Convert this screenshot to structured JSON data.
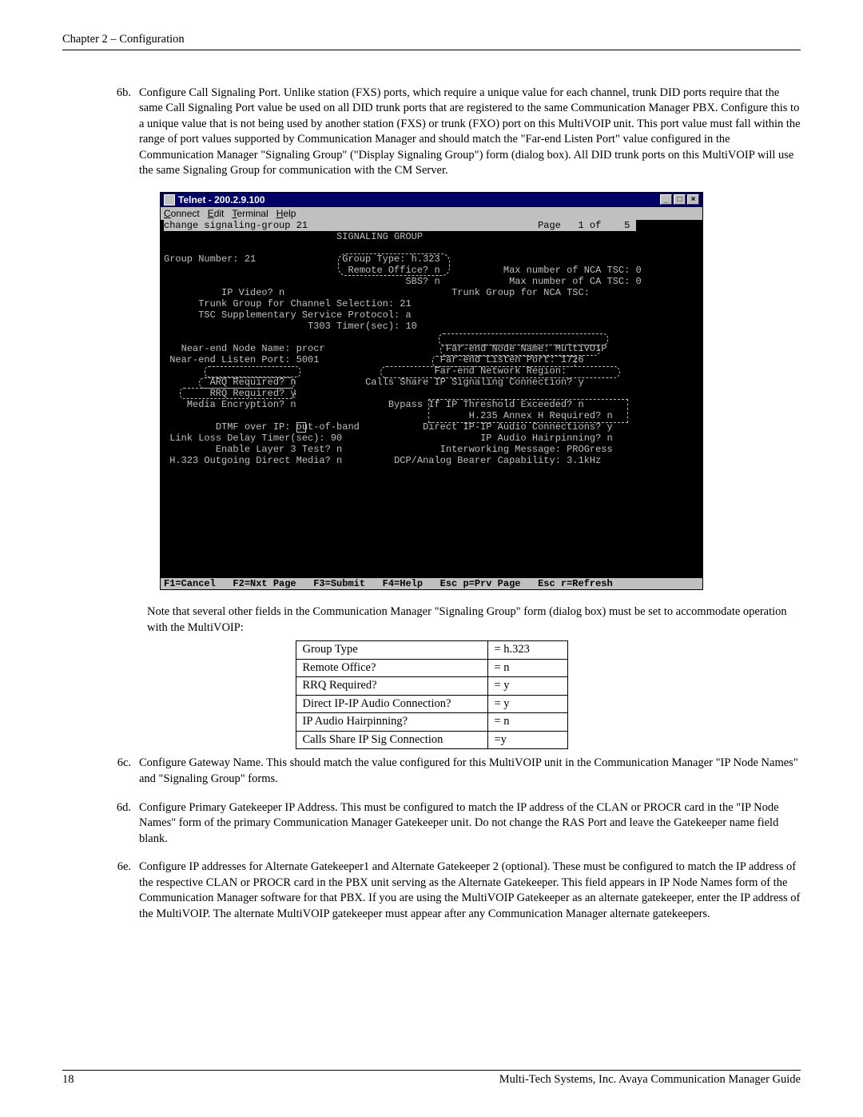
{
  "header": {
    "chapter": "Chapter 2 – Configuration"
  },
  "steps": {
    "b": {
      "num": "6b.",
      "text": "Configure Call Signaling Port.  Unlike station (FXS) ports, which require a unique value for each channel, trunk DID ports require that the same Call Signaling Port value be used on all DID trunk ports that are registered to the same Communication Manager PBX.  Configure this to a unique value that is not being used by another station (FXS) or trunk (FXO) port on this MultiVOIP unit. This port value must fall within the range of port values supported by Communication Manager and should match the  \"Far-end Listen Port\" value configured in the Communication Manager \"Signaling Group\" (\"Display Signaling Group\") form (dialog box). All DID trunk ports on this MultiVOIP will use the same Signaling Group for communication with the CM Server."
    },
    "c": {
      "num": "6c.",
      "text": "Configure Gateway Name.  This should match the value configured for this MultiVOIP unit in the Communication Manager \"IP Node Names\" and \"Signaling Group\" forms."
    },
    "d": {
      "num": "6d.",
      "text": "Configure Primary Gatekeeper IP Address. This must be configured to match the IP address of the CLAN or PROCR card in the \"IP Node Names\" form of the primary Communication Manager Gatekeeper unit.  Do not change the RAS Port and leave the Gatekeeper name field blank."
    },
    "e": {
      "num": "6e.",
      "text": "Configure IP addresses for Alternate Gatekeeper1 and Alternate Gatekeeper 2 (optional).  These must be configured to match the IP address of the respective CLAN or PROCR card in the PBX unit serving as the Alternate Gatekeeper. This field appears in IP Node Names form of the Communication Manager software for that PBX. If you are using the MultiVOIP Gatekeeper as an alternate gatekeeper, enter the IP address of the MultiVOIP. The alternate MultiVOIP gatekeeper must appear after any Communication Manager alternate gatekeepers."
    }
  },
  "telnet": {
    "title": "Telnet - 200.2.9.100",
    "menu": {
      "connect": "Connect",
      "edit": "Edit",
      "terminal": "Terminal",
      "help": "Help"
    },
    "cmd_line_left": "change signaling-group 21",
    "cmd_line_right": "Page   1 of    5",
    "heading": "SIGNALING GROUP",
    "lines": {
      "l1a": "Group Number: 21",
      "l1b": "Group Type: h.323",
      "l2b": "Remote Office? n",
      "l2c": "Max number of NCA TSC: 0",
      "l3b": "SBS? n",
      "l3c": "Max number of CA TSC: 0",
      "l4a": "IP Video? n",
      "l4c": "Trunk Group for NCA TSC:",
      "l5a": "Trunk Group for Channel Selection: 21",
      "l6a": "TSC Supplementary Service Protocol: a",
      "l7a": "T303 Timer(sec): 10",
      "l8a": "Near-end Node Name: procr",
      "l8c": "Far-end Node Name: MultiVOIP",
      "l9a": "Near-end Listen Port: 5001",
      "l9c": "Far-end Listen Port: 1726",
      "l10c": "Far-end Network Region:",
      "l11a": "ARQ Required? n",
      "l11c": "Calls Share IP Signaling Connection? y",
      "l12a": "RRQ Required? y",
      "l13a": "Media Encryption? n",
      "l13c": "Bypass If IP Threshold Exceeded? n",
      "l14c": "H.235 Annex H Required? n",
      "l15a": "DTMF over IP: out-of-band",
      "l15c": "Direct IP-IP Audio Connections? y",
      "l16a": "Link Loss Delay Timer(sec): 90",
      "l16c": "IP Audio Hairpinning? n",
      "l17a": "Enable Layer 3 Test? n",
      "l17c": "Interworking Message: PROGress",
      "l18a": "H.323 Outgoing Direct Media? n",
      "l18c": "DCP/Analog Bearer Capability: 3.1kHz"
    },
    "footer": "F1=Cancel   F2=Nxt Page   F3=Submit   F4=Help   Esc p=Prv Page   Esc r=Refresh"
  },
  "note_para": "Note that several other fields in the Communication Manager \"Signaling Group\" form (dialog box) must be set to accommodate operation with the MultiVOIP:",
  "settings_table": {
    "rows": [
      {
        "field": "Group Type",
        "value": "= h.323"
      },
      {
        "field": "Remote Office?",
        "value": "= n"
      },
      {
        "field": "RRQ Required?",
        "value": "= y"
      },
      {
        "field": "Direct IP-IP Audio Connection?",
        "value": "= y"
      },
      {
        "field": "IP Audio Hairpinning?",
        "value": "= n"
      },
      {
        "field": "Calls Share IP Sig Connection",
        "value": "=y"
      }
    ]
  },
  "footer": {
    "page": "18",
    "right": "Multi-Tech Systems, Inc. Avaya Communication Manager Guide"
  }
}
